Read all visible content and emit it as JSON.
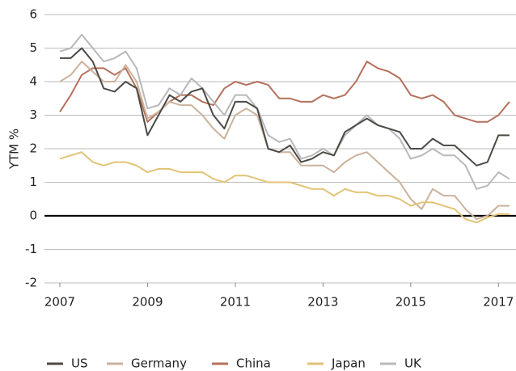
{
  "chart_data": {
    "type": "line",
    "ylabel": "YTM %",
    "x": [
      2007,
      2007.25,
      2007.5,
      2007.75,
      2008,
      2008.25,
      2008.5,
      2008.75,
      2009,
      2009.25,
      2009.5,
      2009.75,
      2010,
      2010.25,
      2010.5,
      2010.75,
      2011,
      2011.25,
      2011.5,
      2011.75,
      2012,
      2012.25,
      2012.5,
      2012.75,
      2013,
      2013.25,
      2013.5,
      2013.75,
      2014,
      2014.25,
      2014.5,
      2014.75,
      2015,
      2015.25,
      2015.5,
      2015.75,
      2016,
      2016.25,
      2016.5,
      2016.75,
      2017,
      2017.25
    ],
    "series": [
      {
        "name": "US",
        "color": "#4d4a45",
        "values": [
          4.7,
          4.7,
          5.0,
          4.6,
          3.8,
          3.7,
          4.0,
          3.8,
          2.4,
          3.0,
          3.6,
          3.4,
          3.7,
          3.8,
          3.0,
          2.6,
          3.4,
          3.4,
          3.2,
          2.0,
          1.9,
          2.1,
          1.6,
          1.7,
          1.9,
          1.8,
          2.5,
          2.7,
          2.9,
          2.7,
          2.6,
          2.5,
          2.0,
          2.0,
          2.3,
          2.1,
          2.1,
          1.8,
          1.5,
          1.6,
          2.4,
          2.4
        ]
      },
      {
        "name": "Germany",
        "color": "#cbb29c",
        "values": [
          4.0,
          4.2,
          4.6,
          4.3,
          4.0,
          4.0,
          4.5,
          4.0,
          2.9,
          3.1,
          3.4,
          3.3,
          3.3,
          3.0,
          2.6,
          2.3,
          3.0,
          3.2,
          3.0,
          2.0,
          1.9,
          1.9,
          1.5,
          1.5,
          1.5,
          1.3,
          1.6,
          1.8,
          1.9,
          1.6,
          1.3,
          1.0,
          0.5,
          0.2,
          0.8,
          0.6,
          0.6,
          0.2,
          -0.1,
          0.0,
          0.3,
          0.3
        ]
      },
      {
        "name": "China",
        "color": "#b5715c",
        "values": [
          3.1,
          3.6,
          4.2,
          4.4,
          4.4,
          4.2,
          4.4,
          3.8,
          2.8,
          3.1,
          3.4,
          3.6,
          3.6,
          3.4,
          3.3,
          3.8,
          4.0,
          3.9,
          4.0,
          3.9,
          3.5,
          3.5,
          3.4,
          3.4,
          3.6,
          3.5,
          3.6,
          4.0,
          4.6,
          4.4,
          4.3,
          4.1,
          3.6,
          3.5,
          3.6,
          3.4,
          3.0,
          2.9,
          2.8,
          2.8,
          3.0,
          3.4
        ]
      },
      {
        "name": "Japan",
        "color": "#e2c275",
        "values": [
          1.7,
          1.8,
          1.9,
          1.6,
          1.5,
          1.6,
          1.6,
          1.5,
          1.3,
          1.4,
          1.4,
          1.3,
          1.3,
          1.3,
          1.1,
          1.0,
          1.2,
          1.2,
          1.1,
          1.0,
          1.0,
          1.0,
          0.9,
          0.8,
          0.8,
          0.6,
          0.8,
          0.7,
          0.7,
          0.6,
          0.6,
          0.5,
          0.3,
          0.4,
          0.4,
          0.3,
          0.2,
          -0.1,
          -0.2,
          -0.05,
          0.05,
          0.05
        ]
      },
      {
        "name": "UK",
        "color": "#b8b8bc",
        "values": [
          4.9,
          5.0,
          5.4,
          5.0,
          4.6,
          4.7,
          4.9,
          4.4,
          3.2,
          3.3,
          3.8,
          3.6,
          4.1,
          3.8,
          3.4,
          3.0,
          3.6,
          3.6,
          3.2,
          2.4,
          2.2,
          2.3,
          1.7,
          1.8,
          2.0,
          1.8,
          2.4,
          2.7,
          3.0,
          2.7,
          2.6,
          2.3,
          1.7,
          1.8,
          2.0,
          1.8,
          1.8,
          1.5,
          0.8,
          0.9,
          1.3,
          1.1
        ]
      }
    ],
    "xlim": [
      2006.65,
      2017.4
    ],
    "xticks": [
      2007,
      2009,
      2011,
      2013,
      2015,
      2017
    ],
    "ylim": [
      -2,
      6
    ],
    "yticks": [
      -2,
      -1,
      0,
      1,
      2,
      3,
      4,
      5,
      6
    ],
    "grid": true,
    "legend": "bottom"
  }
}
